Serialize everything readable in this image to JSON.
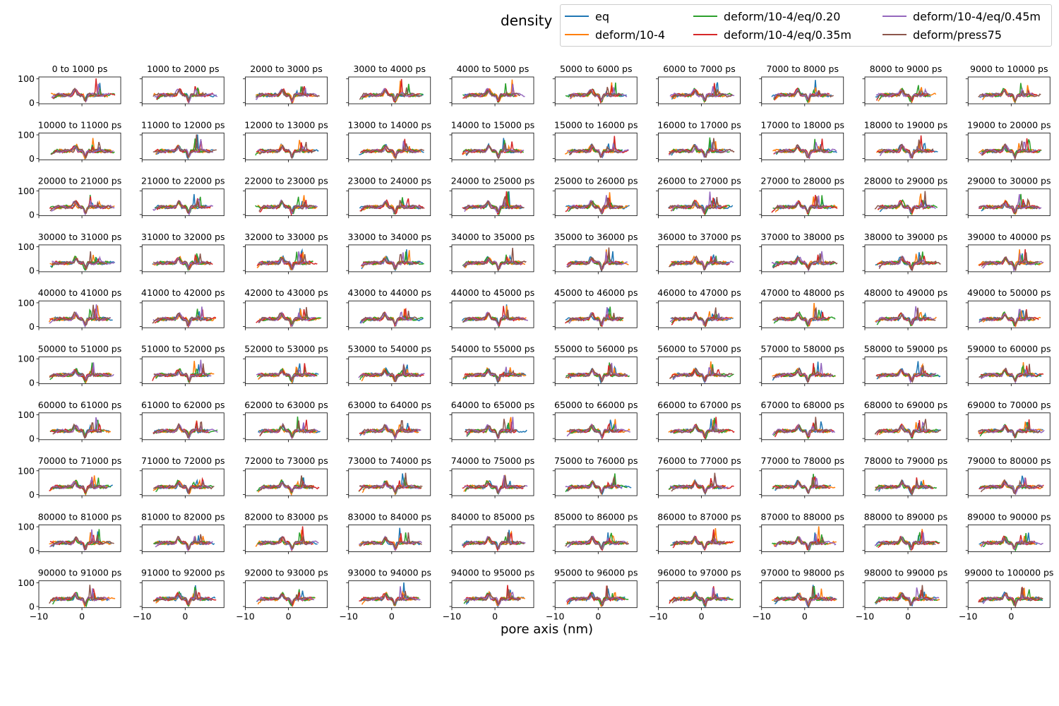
{
  "chart_data": {
    "type": "line",
    "title": "density",
    "xlabel": "pore axis (nm)",
    "ylabel": "",
    "legend_position": "top-right",
    "grid": false,
    "xlim": [
      -10,
      9
    ],
    "ylim": [
      -5,
      108
    ],
    "xticks": [
      -10,
      0
    ],
    "yticks": [
      0,
      100
    ],
    "series": [
      {
        "name": "eq",
        "color": "#1f77b4"
      },
      {
        "name": "deform/10-4",
        "color": "#ff7f0e"
      },
      {
        "name": "deform/10-4/eq/0.20",
        "color": "#2ca02c"
      },
      {
        "name": "deform/10-4/eq/0.35m",
        "color": "#d62728"
      },
      {
        "name": "deform/10-4/eq/0.45m",
        "color": "#9467bd"
      },
      {
        "name": "deform/press75",
        "color": "#8c564b"
      }
    ],
    "panel_labels": [
      "0 to 1000 ps",
      "1000 to 2000 ps",
      "2000 to 3000 ps",
      "3000 to 4000 ps",
      "4000 to 5000 ps",
      "5000 to 6000 ps",
      "6000 to 7000 ps",
      "7000 to 8000 ps",
      "8000 to 9000 ps",
      "9000 to 10000 ps",
      "10000 to 11000 ps",
      "11000 to 12000 ps",
      "12000 to 13000 ps",
      "13000 to 14000 ps",
      "14000 to 15000 ps",
      "15000 to 16000 ps",
      "16000 to 17000 ps",
      "17000 to 18000 ps",
      "18000 to 19000 ps",
      "19000 to 20000 ps",
      "20000 to 21000 ps",
      "21000 to 22000 ps",
      "22000 to 23000 ps",
      "23000 to 24000 ps",
      "24000 to 25000 ps",
      "25000 to 26000 ps",
      "26000 to 27000 ps",
      "27000 to 28000 ps",
      "28000 to 29000 ps",
      "29000 to 30000 ps",
      "30000 to 31000 ps",
      "31000 to 32000 ps",
      "32000 to 33000 ps",
      "33000 to 34000 ps",
      "34000 to 35000 ps",
      "35000 to 36000 ps",
      "36000 to 37000 ps",
      "37000 to 38000 ps",
      "38000 to 39000 ps",
      "39000 to 40000 ps",
      "40000 to 41000 ps",
      "41000 to 42000 ps",
      "42000 to 43000 ps",
      "43000 to 44000 ps",
      "44000 to 45000 ps",
      "45000 to 46000 ps",
      "46000 to 47000 ps",
      "47000 to 48000 ps",
      "48000 to 49000 ps",
      "49000 to 50000 ps",
      "50000 to 51000 ps",
      "51000 to 52000 ps",
      "52000 to 53000 ps",
      "53000 to 54000 ps",
      "54000 to 55000 ps",
      "55000 to 56000 ps",
      "56000 to 57000 ps",
      "57000 to 58000 ps",
      "58000 to 59000 ps",
      "59000 to 60000 ps",
      "60000 to 61000 ps",
      "61000 to 62000 ps",
      "62000 to 63000 ps",
      "63000 to 64000 ps",
      "64000 to 65000 ps",
      "65000 to 66000 ps",
      "66000 to 67000 ps",
      "67000 to 68000 ps",
      "68000 to 69000 ps",
      "69000 to 70000 ps",
      "70000 to 71000 ps",
      "71000 to 72000 ps",
      "72000 to 73000 ps",
      "73000 to 74000 ps",
      "74000 to 75000 ps",
      "75000 to 76000 ps",
      "76000 to 77000 ps",
      "77000 to 78000 ps",
      "78000 to 79000 ps",
      "79000 to 80000 ps",
      "80000 to 81000 ps",
      "81000 to 82000 ps",
      "82000 to 83000 ps",
      "83000 to 84000 ps",
      "84000 to 85000 ps",
      "85000 to 86000 ps",
      "86000 to 87000 ps",
      "87000 to 88000 ps",
      "88000 to 89000 ps",
      "89000 to 90000 ps",
      "90000 to 91000 ps",
      "91000 to 92000 ps",
      "92000 to 93000 ps",
      "93000 to 94000 ps",
      "94000 to 95000 ps",
      "95000 to 96000 ps",
      "96000 to 97000 ps",
      "97000 to 98000 ps",
      "98000 to 99000 ps",
      "99000 to 100000 ps"
    ]
  }
}
